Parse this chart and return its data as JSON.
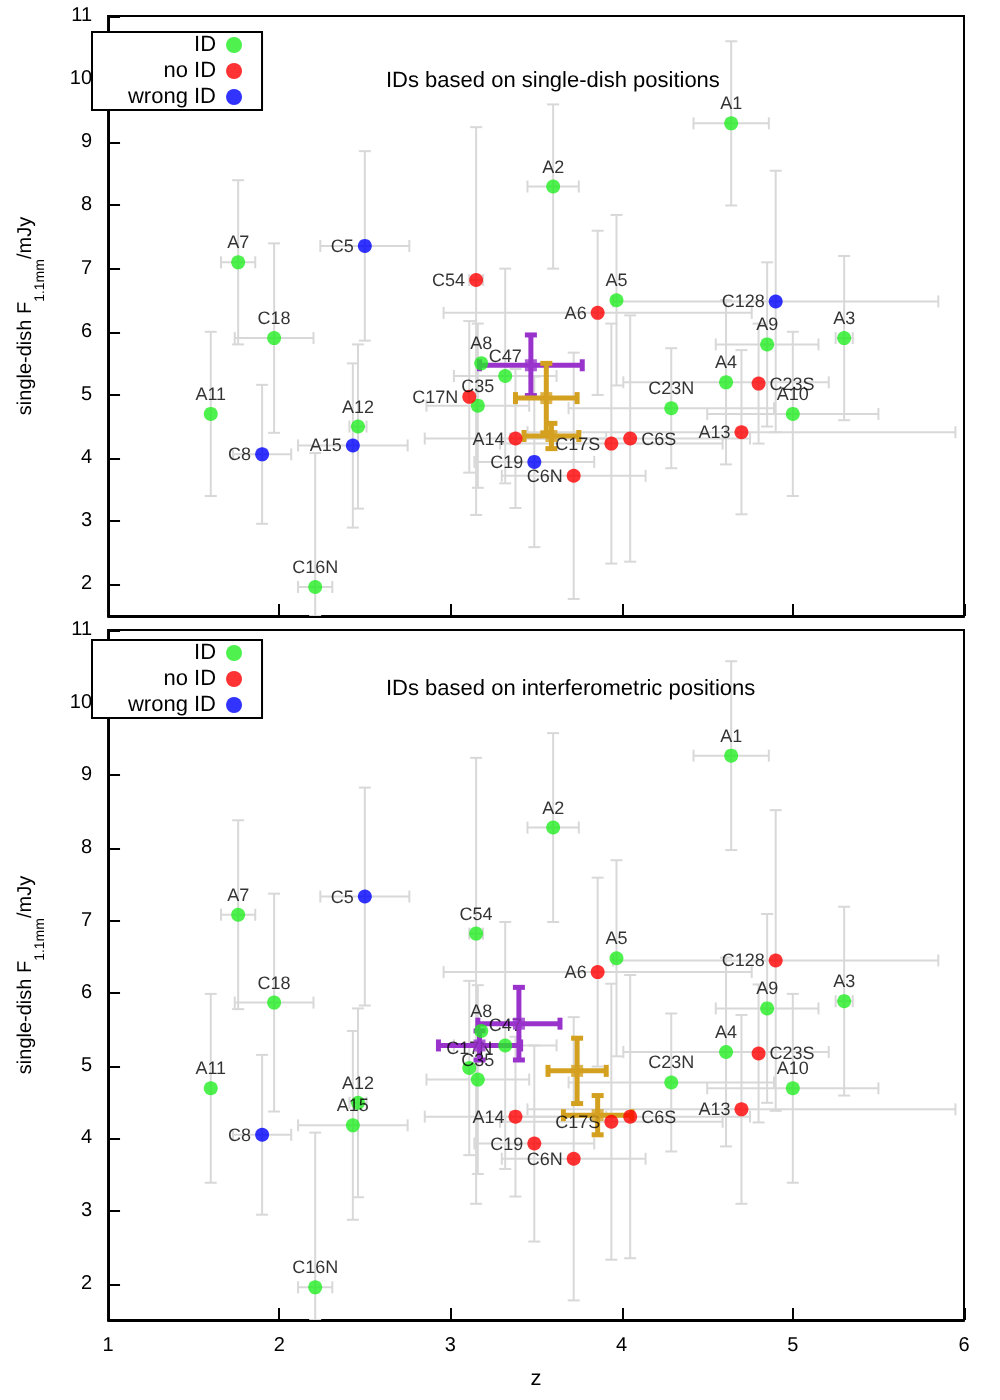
{
  "chart_data": [
    {
      "type": "scatter",
      "title": "IDs based on single-dish positions",
      "ylabel": "single-dish F$_{1.1mm}$/mJy",
      "xlim": [
        1,
        6
      ],
      "xticks": [
        1,
        2,
        3,
        4,
        5,
        6
      ],
      "ylim": [
        1.5,
        11
      ],
      "yticks": [
        2,
        3,
        4,
        5,
        6,
        7,
        8,
        9,
        10,
        11
      ],
      "tick_labels": "y",
      "legend": "top left",
      "marker": "circle",
      "series": [
        {
          "name": "ID",
          "color": "#22ee22",
          "x": [
            1.76,
            1.97,
            1.6,
            2.46,
            2.21,
            3.18,
            3.32,
            3.16,
            3.6,
            4.64,
            3.97,
            5.3,
            4.85,
            4.61,
            4.29,
            5.0
          ],
          "values": [
            7.1,
            5.9,
            4.7,
            4.5,
            1.96,
            5.5,
            5.3,
            4.83,
            8.3,
            9.3,
            6.5,
            5.9,
            5.8,
            5.2,
            4.79,
            4.7
          ],
          "errors": [
            1.3,
            1.5,
            1.3,
            1.3,
            [
              1.5,
              4.08
            ],
            null,
            1.7,
            1.3,
            1.3,
            1.3,
            1.35,
            1.3,
            1.3,
            1.3,
            0.95,
            1.3
          ],
          "xerrors": [
            0.1,
            0.23,
            null,
            0.05,
            0.1,
            null,
            0.3,
            0.3,
            0.15,
            0.22,
            null,
            0.05,
            0.3,
            0.6,
            0.6,
            0.5
          ],
          "value_labels": [
            "A7",
            "C18",
            "A11",
            "A12",
            "C16N",
            "A8",
            "C47",
            "C35",
            "A2",
            "A1",
            "A5",
            "A3",
            "A9",
            "A4",
            "C23N",
            "A10"
          ]
        },
        {
          "name": "no ID",
          "color": "#ff0000",
          "x": [
            3.15,
            3.11,
            3.38,
            3.86,
            4.8,
            4.7,
            4.05,
            3.94,
            3.72
          ],
          "values": [
            6.82,
            4.97,
            4.31,
            6.3,
            5.18,
            4.41,
            4.31,
            4.23,
            3.72
          ],
          "errors": [
            [
              3.1,
              9.24
            ],
            1.2,
            1.1,
            1.3,
            0.95,
            1.3,
            1.95,
            1.9,
            1.95
          ],
          "xerrors": [
            0.04,
            null,
            0.53,
            0.9,
            null,
            1.25,
            0.7,
            0.65,
            0.42
          ],
          "value_labels": [
            "C54",
            "C17N",
            "A14",
            "A6",
            "C23S",
            "A13",
            "C6S",
            "C17S",
            "C6N"
          ]
        },
        {
          "name": "wrong ID",
          "color": "#0000ff",
          "x": [
            1.9,
            2.5,
            2.43,
            3.49,
            4.9
          ],
          "values": [
            4.06,
            7.36,
            4.2,
            3.94,
            6.48
          ],
          "errors": [
            1.1,
            1.5,
            1.3,
            1.35,
            2.07
          ],
          "xerrors": [
            0.17,
            0.26,
            0.32,
            0.35,
            0.95
          ],
          "value_labels": [
            "C8",
            "C5",
            "A15",
            "C19",
            "C128"
          ]
        },
        {
          "color": "#9933cc",
          "marker": "square",
          "x": [
            3.47
          ],
          "values": [
            5.47
          ],
          "errors": [
            0.48
          ],
          "xerrors": [
            0.3
          ]
        },
        {
          "color": "#d4a020",
          "marker": "square",
          "x": [
            3.56,
            3.59
          ],
          "values": [
            4.95,
            4.35
          ],
          "errors": [
            0.55,
            0.2
          ],
          "xerrors": [
            0.18,
            0.16
          ]
        }
      ]
    },
    {
      "type": "scatter",
      "title": "IDs based on interferometric positions",
      "xlabel": "z",
      "ylabel": "single-dish F$_{1.1mm}$/mJy",
      "xlim": [
        1,
        6
      ],
      "xticks": [
        1,
        2,
        3,
        4,
        5,
        6
      ],
      "ylim": [
        1.5,
        11
      ],
      "yticks": [
        2,
        3,
        4,
        5,
        6,
        7,
        8,
        9,
        10,
        11
      ],
      "legend": "top left",
      "marker": "circle",
      "series": [
        {
          "name": "ID",
          "color": "#22ee22",
          "x": [
            1.76,
            1.97,
            1.6,
            2.46,
            2.43,
            2.21,
            3.15,
            3.18,
            3.32,
            3.11,
            3.16,
            3.6,
            4.64,
            3.97,
            5.3,
            4.85,
            4.61,
            4.29,
            5.0
          ],
          "values": [
            7.08,
            5.87,
            4.69,
            4.49,
            4.18,
            1.95,
            6.82,
            5.48,
            5.28,
            4.97,
            4.81,
            8.28,
            9.27,
            6.48,
            5.89,
            5.79,
            5.19,
            4.77,
            4.69
          ],
          "errors": [
            1.3,
            1.5,
            1.3,
            1.3,
            1.3,
            [
              1.5,
              4.08
            ],
            [
              3.1,
              9.24
            ],
            null,
            1.7,
            1.2,
            1.3,
            1.3,
            1.3,
            1.35,
            1.3,
            1.3,
            1.3,
            0.95,
            1.3
          ],
          "xerrors": [
            0.1,
            0.23,
            null,
            0.05,
            0.32,
            0.1,
            0.04,
            null,
            0.3,
            null,
            0.3,
            0.15,
            0.22,
            null,
            0.05,
            0.3,
            0.6,
            0.6,
            0.5
          ],
          "value_labels": [
            "A7",
            "C18",
            "A11",
            "A12",
            "A15",
            "C16N",
            "C54",
            "A8",
            "C47",
            "C17N",
            "C35",
            "A2",
            "A1",
            "A5",
            "A3",
            "A9",
            "A4",
            "C23N",
            "A10"
          ]
        },
        {
          "name": "no ID",
          "color": "#ff0000",
          "x": [
            3.38,
            3.49,
            3.86,
            4.9,
            4.8,
            4.7,
            4.05,
            3.94,
            3.72
          ],
          "values": [
            4.3,
            3.93,
            6.29,
            6.45,
            5.17,
            4.4,
            4.3,
            4.23,
            3.72
          ],
          "errors": [
            1.1,
            1.35,
            1.3,
            2.07,
            0.95,
            1.3,
            1.95,
            1.9,
            1.95
          ],
          "xerrors": [
            0.53,
            0.35,
            0.9,
            0.95,
            null,
            1.25,
            0.7,
            0.65,
            0.42
          ],
          "value_labels": [
            "A14",
            "C19",
            "A6",
            "C128",
            "C23S",
            "A13",
            "C6S",
            "C17S",
            "C6N"
          ]
        },
        {
          "name": "wrong ID",
          "color": "#0000ff",
          "x": [
            1.9,
            2.5
          ],
          "values": [
            4.05,
            7.33
          ],
          "errors": [
            1.1,
            1.5
          ],
          "xerrors": [
            0.17,
            0.26
          ],
          "value_labels": [
            "C8",
            "C5"
          ]
        },
        {
          "color": "#9933cc",
          "marker": "square",
          "x": [
            3.4,
            3.17
          ],
          "values": [
            5.58,
            5.28
          ],
          "errors": [
            0.5,
            0.2
          ],
          "xerrors": [
            0.24,
            0.24
          ]
        },
        {
          "color": "#d4a020",
          "marker": "square",
          "x": [
            3.74,
            3.86
          ],
          "values": [
            4.93,
            4.32
          ],
          "errors": [
            0.45,
            0.27
          ],
          "xerrors": [
            0.17,
            0.2
          ]
        }
      ]
    }
  ]
}
